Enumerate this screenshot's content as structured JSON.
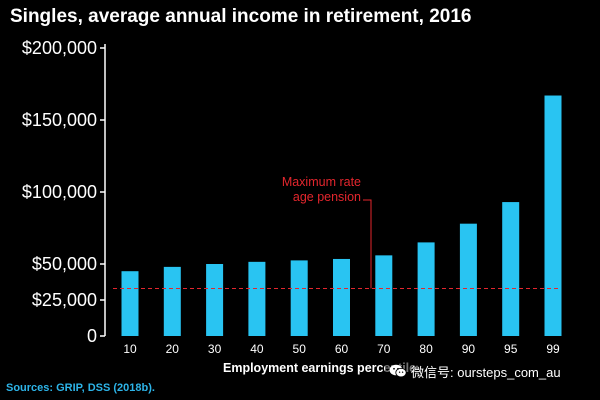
{
  "title": "Singles, average annual income in retirement, 2016",
  "source": "Sources: GRIP, DSS (2018b).",
  "watermark": {
    "text": "微信号: oursteps_com_au",
    "icon": "wechat-icon"
  },
  "colors": {
    "background": "#000000",
    "bar": "#29c4f2",
    "reference_line": "#e3262d",
    "source_text": "#2db4e8",
    "text": "#ffffff"
  },
  "chart_data": {
    "type": "bar",
    "title": "Singles, average annual income in retirement, 2016",
    "xlabel": "Employment earnings percentile",
    "ylabel": "",
    "categories": [
      "10",
      "20",
      "30",
      "40",
      "50",
      "60",
      "70",
      "80",
      "90",
      "95",
      "99"
    ],
    "values": [
      45000,
      48000,
      50000,
      51500,
      52500,
      53500,
      56000,
      65000,
      78000,
      93000,
      167000
    ],
    "ylim": [
      0,
      200000
    ],
    "yticks": [
      0,
      25000,
      50000,
      100000,
      150000,
      200000
    ],
    "ytick_labels": [
      "0",
      "$25,000",
      "$50,000",
      "$100,000",
      "$150,000",
      "$200,000"
    ],
    "grid": false,
    "reference_line": {
      "value": 33000,
      "label_lines": [
        "Maximum rate",
        "age pension"
      ],
      "style": "dashed"
    }
  }
}
